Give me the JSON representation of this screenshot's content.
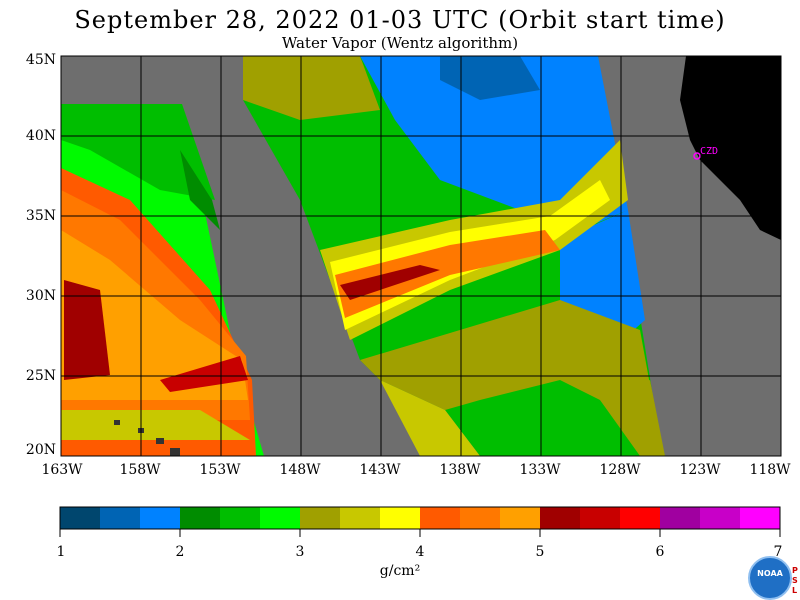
{
  "title": "September 28, 2022  01-03 UTC  (Orbit start time)",
  "subtitle": "Water Vapor (Wentz algorithm)",
  "lat_labels": [
    "45N",
    "40N",
    "35N",
    "30N",
    "25N",
    "20N"
  ],
  "lon_labels": [
    "163W",
    "158W",
    "153W",
    "148W",
    "143W",
    "138W",
    "133W",
    "128W",
    "123W",
    "118W"
  ],
  "station": "CZD",
  "colorbar": {
    "ticks": [
      "1",
      "2",
      "3",
      "4",
      "5",
      "6",
      "7"
    ],
    "units": "g/cm²",
    "range": [
      1,
      7
    ],
    "colors": [
      "#00466e",
      "#0064b4",
      "#0082ff",
      "#008c00",
      "#00be00",
      "#00fa00",
      "#a0a000",
      "#c8c800",
      "#ffff00",
      "#ff5a00",
      "#ff7800",
      "#ffa000",
      "#a00000",
      "#c80000",
      "#ff0000",
      "#a000a0",
      "#c800c8",
      "#ff00ff"
    ]
  },
  "logo_text": "NOAA",
  "psl_text": [
    "P",
    "S",
    "L"
  ],
  "map_colors": {
    "no_data": "#6e6e6e",
    "land": "#000000",
    "grid": "#000000"
  }
}
